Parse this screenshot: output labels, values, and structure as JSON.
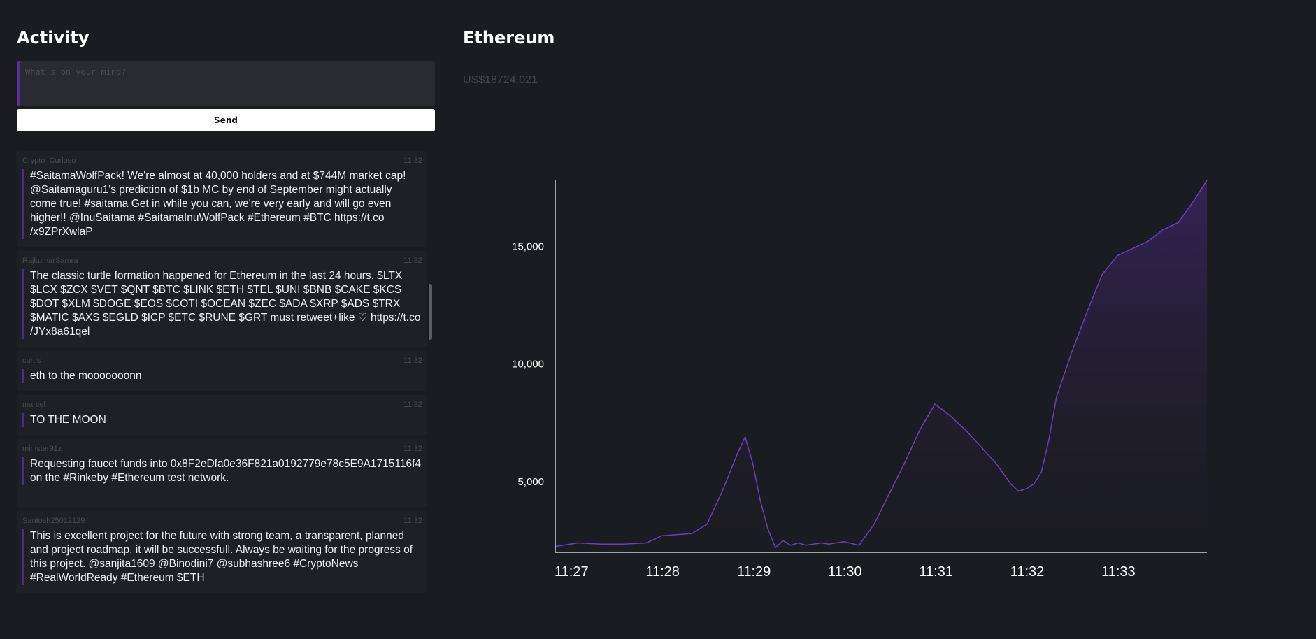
{
  "activity": {
    "title": "Activity",
    "compose_placeholder": "What's on your mind?",
    "send_label": "Send",
    "posts": [
      {
        "author": "Crypto_Curioso",
        "time": "11:32",
        "text": "#SaitamaWolfPack! We're almost at 40,000 holders and at $744M market cap! @Saitamaguru1's prediction of $1b MC by end of September might actually come true! #saitama Get in while you can, we're very early and will go even higher!! @InuSaitama #SaitamaInuWolfPack #Ethereum #BTC https://t.co /x9ZPrXwlaP"
      },
      {
        "author": "RajkumarSamra",
        "time": "11:32",
        "text": "The classic turtle formation happened for Ethereum in the last 24 hours. $LTX $LCX $ZCX $VET $QNT $BTC $LINK $ETH $TEL $UNI $BNB $CAKE $KCS $DOT $XLM $DOGE $EOS $COTI $OCEAN $ZEC $ADA $XRP $ADS $TRX $MATIC $AXS $EGLD $ICP $ETC $RUNE $GRT must retweet+like ♡ https://t.co /JYx8a61qel"
      },
      {
        "author": "curtis",
        "time": "11:32",
        "text": "eth to the mooooooonn"
      },
      {
        "author": "marcel",
        "time": "11:32",
        "text": "TO THE MOON"
      },
      {
        "author": "minister91z",
        "time": "11:32",
        "text": "Requesting faucet funds into 0x8F2eDfa0e36F821a0192779e78c5E9A1715116f4 on the #Rinkeby #Ethereum test network."
      },
      {
        "author": "Santosh25012129",
        "time": "11:32",
        "text": "This is excellent project for the future with strong team, a transparent, planned and project roadmap. it will be successfull. Always be waiting for the progress of this project. @sanjita1609 @Binodini7 @subhashree6 #CryptoNews #RealWorldReady #Ethereum $ETH"
      }
    ]
  },
  "asset": {
    "title": "Ethereum",
    "price": "US$18724.021"
  },
  "colors": {
    "accent": "#5b2e9c",
    "line": "#6a3fbf",
    "background": "#1b1c21"
  },
  "chart_data": {
    "type": "area",
    "title": "",
    "xlabel": "",
    "ylabel": "",
    "x_ticks": [
      "11:27",
      "11:28",
      "11:29",
      "11:30",
      "11:31",
      "11:32",
      "11:33"
    ],
    "y_ticks": [
      "5,000",
      "10,000",
      "15,000"
    ],
    "y_tick_values": [
      5000,
      10000,
      15000
    ],
    "ylim": [
      2000,
      17800
    ],
    "xlim": [
      "11:27:00",
      "11:34:09"
    ],
    "grid": false,
    "series": [
      {
        "x": [
          "11:27:00",
          "11:27:15",
          "11:27:30",
          "11:27:45",
          "11:28:00",
          "11:28:10",
          "11:28:20",
          "11:28:30",
          "11:28:40",
          "11:28:50",
          "11:29:00",
          "11:29:05",
          "11:29:10",
          "11:29:15",
          "11:29:20",
          "11:29:25",
          "11:29:30",
          "11:29:35",
          "11:29:40",
          "11:29:45",
          "11:29:50",
          "11:29:55",
          "11:30:00",
          "11:30:10",
          "11:30:20",
          "11:30:30",
          "11:30:40",
          "11:30:50",
          "11:31:00",
          "11:31:10",
          "11:31:20",
          "11:31:30",
          "11:31:40",
          "11:31:50",
          "11:32:00",
          "11:32:05",
          "11:32:10",
          "11:32:15",
          "11:32:20",
          "11:32:25",
          "11:32:30",
          "11:32:40",
          "11:32:50",
          "11:33:00",
          "11:33:10",
          "11:33:20",
          "11:33:30",
          "11:33:40",
          "11:33:50",
          "11:34:00",
          "11:34:09"
        ],
        "values": [
          2250,
          2400,
          2350,
          2350,
          2400,
          2700,
          2750,
          2800,
          3200,
          4600,
          6200,
          6900,
          5800,
          4200,
          3000,
          2200,
          2500,
          2300,
          2400,
          2300,
          2350,
          2400,
          2350,
          2450,
          2300,
          3200,
          4500,
          5800,
          7200,
          8300,
          7800,
          7200,
          6500,
          5800,
          4900,
          4600,
          4700,
          4900,
          5400,
          6800,
          8600,
          10500,
          12200,
          13800,
          14600,
          14900,
          15200,
          15700,
          16000,
          16900,
          17800
        ]
      }
    ]
  }
}
